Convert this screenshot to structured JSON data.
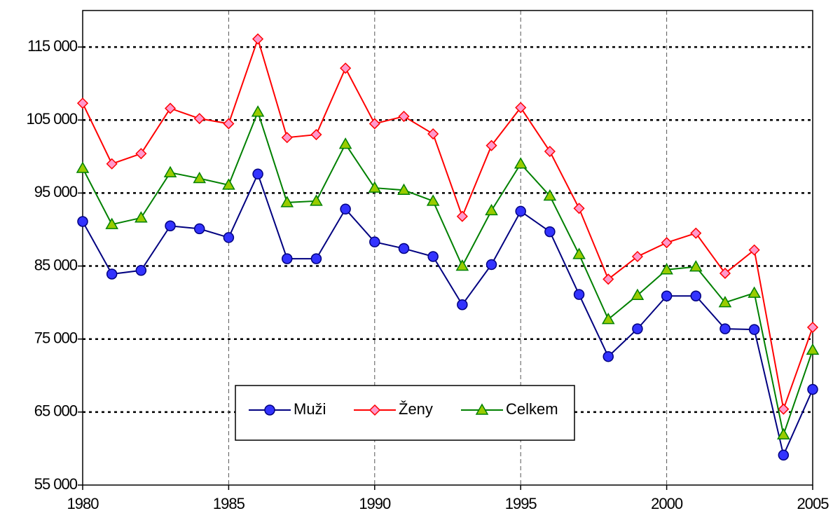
{
  "chart_data": {
    "type": "line",
    "x": [
      1980,
      1981,
      1982,
      1983,
      1984,
      1985,
      1986,
      1987,
      1988,
      1989,
      1990,
      1991,
      1992,
      1993,
      1994,
      1995,
      1996,
      1997,
      1998,
      1999,
      2000,
      2001,
      2002,
      2003,
      2004,
      2005
    ],
    "series": [
      {
        "name": "Muži",
        "color": "#000080",
        "marker": "circle",
        "marker_color": "#3333ff",
        "values": [
          91100,
          83900,
          84400,
          90500,
          90100,
          88900,
          97600,
          86000,
          86000,
          92800,
          88300,
          87400,
          86300,
          79700,
          85200,
          92500,
          89700,
          81100,
          72600,
          76400,
          80900,
          80900,
          76400,
          76300,
          59100,
          68100
        ]
      },
      {
        "name": "Ženy",
        "color": "#ff0000",
        "marker": "diamond",
        "marker_color": "#ff99cc",
        "values": [
          107300,
          99000,
          100400,
          106600,
          105200,
          104500,
          116100,
          102600,
          103000,
          112100,
          104500,
          105500,
          103100,
          91800,
          101500,
          106700,
          100700,
          92900,
          83200,
          86300,
          88200,
          89500,
          84000,
          87200,
          65400,
          76600
        ]
      },
      {
        "name": "Celkem",
        "color": "#008000",
        "marker": "triangle",
        "marker_color": "#99cc00",
        "values": [
          98400,
          90700,
          91600,
          97800,
          97000,
          96100,
          106100,
          93700,
          93900,
          101700,
          95700,
          95400,
          93900,
          85000,
          92600,
          99000,
          94600,
          86600,
          77700,
          81000,
          84500,
          84900,
          80000,
          81300,
          61900,
          73500
        ]
      }
    ],
    "xlim": [
      1980,
      2005
    ],
    "xticks": [
      1980,
      1985,
      1990,
      1995,
      2000,
      2005
    ],
    "ylim": [
      55000,
      120000
    ],
    "yticks": [
      {
        "value": 55000,
        "label": "55 000"
      },
      {
        "value": 65000,
        "label": "65 000"
      },
      {
        "value": 75000,
        "label": "75 000"
      },
      {
        "value": 85000,
        "label": "85 000"
      },
      {
        "value": 95000,
        "label": "95 000"
      },
      {
        "value": 105000,
        "label": "105 000"
      },
      {
        "value": 115000,
        "label": "115 000"
      }
    ],
    "grid": true,
    "legend": "bottom-center"
  }
}
